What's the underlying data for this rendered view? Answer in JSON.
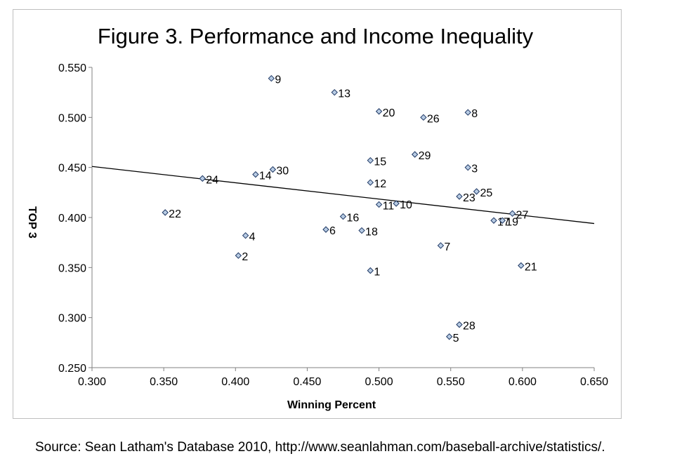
{
  "chart_data": {
    "type": "scatter",
    "title": "Figure 3. Performance and Income Inequality",
    "xlabel": "Winning Percent",
    "ylabel": "TOP 3",
    "xlim": [
      0.3,
      0.65
    ],
    "ylim": [
      0.25,
      0.55
    ],
    "x_ticks": [
      "0.300",
      "0.350",
      "0.400",
      "0.450",
      "0.500",
      "0.550",
      "0.600",
      "0.650"
    ],
    "y_ticks": [
      "0.250",
      "0.300",
      "0.350",
      "0.400",
      "0.450",
      "0.500",
      "0.550"
    ],
    "grid": false,
    "legend": "none",
    "marker_color": "#b8cce4",
    "marker_stroke": "#1f3864",
    "trendline": {
      "x": [
        0.3,
        0.65
      ],
      "y": [
        0.451,
        0.394
      ]
    },
    "points": [
      {
        "label": "1",
        "x": 0.494,
        "y": 0.347
      },
      {
        "label": "2",
        "x": 0.402,
        "y": 0.362
      },
      {
        "label": "3",
        "x": 0.562,
        "y": 0.45
      },
      {
        "label": "4",
        "x": 0.407,
        "y": 0.382
      },
      {
        "label": "5",
        "x": 0.549,
        "y": 0.281
      },
      {
        "label": "6",
        "x": 0.463,
        "y": 0.388
      },
      {
        "label": "7",
        "x": 0.543,
        "y": 0.372
      },
      {
        "label": "8",
        "x": 0.562,
        "y": 0.505
      },
      {
        "label": "9",
        "x": 0.425,
        "y": 0.539
      },
      {
        "label": "10",
        "x": 0.512,
        "y": 0.414
      },
      {
        "label": "11",
        "x": 0.5,
        "y": 0.413
      },
      {
        "label": "12",
        "x": 0.494,
        "y": 0.435
      },
      {
        "label": "13",
        "x": 0.469,
        "y": 0.525
      },
      {
        "label": "14",
        "x": 0.414,
        "y": 0.443
      },
      {
        "label": "15",
        "x": 0.494,
        "y": 0.457
      },
      {
        "label": "16",
        "x": 0.475,
        "y": 0.401
      },
      {
        "label": "17",
        "x": 0.58,
        "y": 0.397
      },
      {
        "label": "18",
        "x": 0.488,
        "y": 0.387
      },
      {
        "label": "19",
        "x": 0.586,
        "y": 0.397
      },
      {
        "label": "20",
        "x": 0.5,
        "y": 0.506
      },
      {
        "label": "21",
        "x": 0.599,
        "y": 0.352
      },
      {
        "label": "22",
        "x": 0.351,
        "y": 0.405
      },
      {
        "label": "23",
        "x": 0.556,
        "y": 0.421
      },
      {
        "label": "24",
        "x": 0.377,
        "y": 0.439
      },
      {
        "label": "25",
        "x": 0.568,
        "y": 0.426
      },
      {
        "label": "26",
        "x": 0.531,
        "y": 0.5
      },
      {
        "label": "27",
        "x": 0.593,
        "y": 0.404
      },
      {
        "label": "28",
        "x": 0.556,
        "y": 0.293
      },
      {
        "label": "29",
        "x": 0.525,
        "y": 0.463
      },
      {
        "label": "30",
        "x": 0.426,
        "y": 0.448
      }
    ]
  },
  "source": "Source: Sean Latham's Database 2010, http://www.seanlahman.com/baseball-archive/statistics/."
}
